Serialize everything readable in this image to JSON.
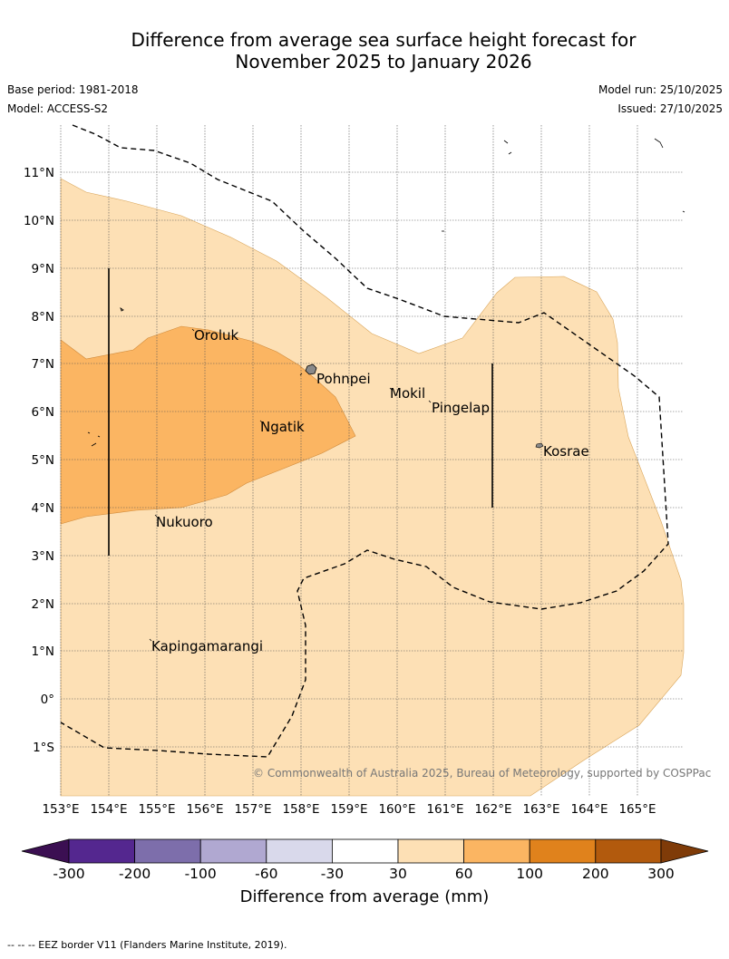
{
  "title": {
    "line1": "Difference from average sea surface height forecast for",
    "line2": "November 2025 to January 2026"
  },
  "meta": {
    "base_period": "Base period: 1981-2018",
    "model": "Model: ACCESS-S2",
    "model_run": "Model run: 25/10/2025",
    "issued": "Issued: 27/10/2025"
  },
  "axes": {
    "lon_labels": [
      "153°E",
      "154°E",
      "155°E",
      "156°E",
      "157°E",
      "158°E",
      "159°E",
      "160°E",
      "161°E",
      "162°E",
      "163°E",
      "164°E",
      "165°E"
    ],
    "lat_labels": [
      "11°N",
      "10°N",
      "9°N",
      "8°N",
      "7°N",
      "6°N",
      "5°N",
      "4°N",
      "3°N",
      "2°N",
      "1°N",
      "0°",
      "1°S"
    ],
    "lon_range": [
      153,
      166
    ],
    "lat_range": [
      -2,
      12
    ]
  },
  "places": [
    {
      "name": "Oroluk"
    },
    {
      "name": "Pohnpei"
    },
    {
      "name": "Mokil"
    },
    {
      "name": "Pingelap"
    },
    {
      "name": "Ngatik"
    },
    {
      "name": "Kosrae"
    },
    {
      "name": "Nukuoro"
    },
    {
      "name": "Kapingamarangi"
    }
  ],
  "copyright": "© Commonwealth of Australia 2025, Bureau of Meteorology, supported by COSPPac",
  "legend": {
    "title": "Difference from average (mm)",
    "labels": [
      "-300",
      "-200",
      "-100",
      "-60",
      "-30",
      "30",
      "60",
      "100",
      "200",
      "300"
    ],
    "colors": [
      "#3b0f52",
      "#54278f",
      "#7d6eab",
      "#b0a8d1",
      "#d9d9eb",
      "#ffffff",
      "#fde0b5",
      "#fbb562",
      "#e0821c",
      "#b25a0d",
      "#7f3b08"
    ]
  },
  "footnote": "--  --  -- EEZ border V11 (Flanders Marine Institute, 2019)."
}
